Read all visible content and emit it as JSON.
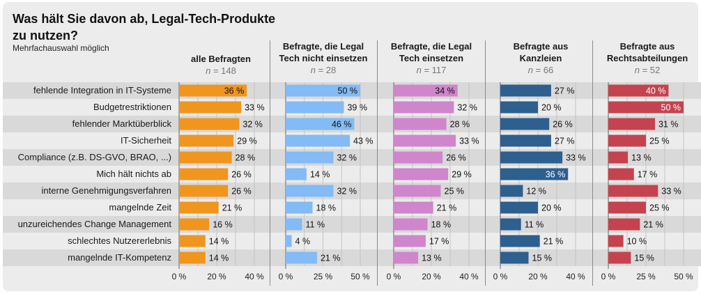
{
  "chart_data": {
    "type": "bar",
    "orientation": "horizontal",
    "title": "Was hält Sie davon ab, Legal-Tech-Produkte zu nutzen?",
    "subtitle": "Mehrfachauswahl möglich",
    "categories": [
      "fehlende Integration in IT-Systeme",
      "Budgetrestriktionen",
      "fehlender Marktüberblick",
      "IT-Sicherheit",
      "Compliance (z.B. DS-GVO, BRAO, ...)",
      "Mich hält nichts ab",
      "interne Genehmigungsverfahren",
      "mangelnde Zeit",
      "unzureichendes Change Management",
      "schlechtes Nutzererlebnis",
      "mangelnde IT-Kompetenz"
    ],
    "series": [
      {
        "name": "alle Befragten",
        "name_parts": [
          {
            "text": "alle Befragten",
            "bold": true
          }
        ],
        "n_label": "n",
        "n_value": "= 148",
        "color": "#f0961e",
        "values": [
          36,
          33,
          32,
          29,
          28,
          26,
          26,
          21,
          16,
          14,
          14
        ],
        "xlim": [
          0,
          40
        ],
        "ticks": [
          0,
          20,
          40
        ],
        "tick_labels": [
          "0 %",
          "20 %",
          "40 %"
        ],
        "inside_label_rows": [
          0
        ],
        "inside_label_color": "#111111"
      },
      {
        "name": "Befragte, die Legal Tech nicht einsetzen",
        "name_line1": "Befragte, die Legal",
        "name_line2_a": "Tech ",
        "name_line2_b": "nicht",
        "name_line2_c": " einsetzen",
        "n_label": "n",
        "n_value": "= 28",
        "color": "#82bbf5",
        "values": [
          50,
          39,
          46,
          43,
          32,
          14,
          32,
          18,
          11,
          4,
          21
        ],
        "xlim": [
          0,
          50
        ],
        "ticks": [
          0,
          25,
          50
        ],
        "tick_labels": [
          "0 %",
          "25 %",
          "50 %"
        ],
        "inside_label_rows": [
          0,
          2
        ],
        "inside_label_color": "#111111"
      },
      {
        "name": "Befragte, die Legal Tech einsetzen",
        "name_line1": "Befragte, die Legal",
        "name_line2": "Tech einsetzen",
        "n_label": "n",
        "n_value": "= 117",
        "color": "#cf86cc",
        "values": [
          34,
          32,
          28,
          33,
          26,
          29,
          25,
          21,
          18,
          17,
          13
        ],
        "xlim": [
          0,
          40
        ],
        "ticks": [
          0,
          20,
          40
        ],
        "tick_labels": [
          "0 %",
          "20 %",
          "40 %"
        ],
        "inside_label_rows": [
          0
        ],
        "inside_label_color": "#111111"
      },
      {
        "name": "Befragte aus Kanzleien",
        "name_line1": "Befragte aus",
        "name_line2": "Kanzleien",
        "n_label": "n",
        "n_value": "= 66",
        "color": "#2d5f8f",
        "values": [
          27,
          20,
          26,
          27,
          33,
          36,
          12,
          20,
          11,
          21,
          15
        ],
        "xlim": [
          0,
          40
        ],
        "ticks": [
          0,
          20,
          40
        ],
        "tick_labels": [
          "0 %",
          "20 %",
          "40 %"
        ],
        "inside_label_rows": [
          5
        ],
        "inside_label_color": "#ffffff"
      },
      {
        "name": "Befragte aus Rechtsabteilungen",
        "name_line1": "Befragte aus",
        "name_line2": "Rechtsabteilungen",
        "n_label": "n",
        "n_value": "= 52",
        "color": "#c4434f",
        "values": [
          40,
          50,
          31,
          25,
          13,
          17,
          33,
          25,
          21,
          10,
          15
        ],
        "xlim": [
          0,
          50
        ],
        "ticks": [
          0,
          25,
          50
        ],
        "tick_labels": [
          "0 %",
          "25 %",
          "50 %"
        ],
        "inside_label_rows": [
          0,
          1
        ],
        "inside_label_color": "#ffffff"
      }
    ],
    "value_format": "{v} %",
    "xlabel": "",
    "ylabel": "",
    "grid": true,
    "legend": "none (panel headers)"
  }
}
